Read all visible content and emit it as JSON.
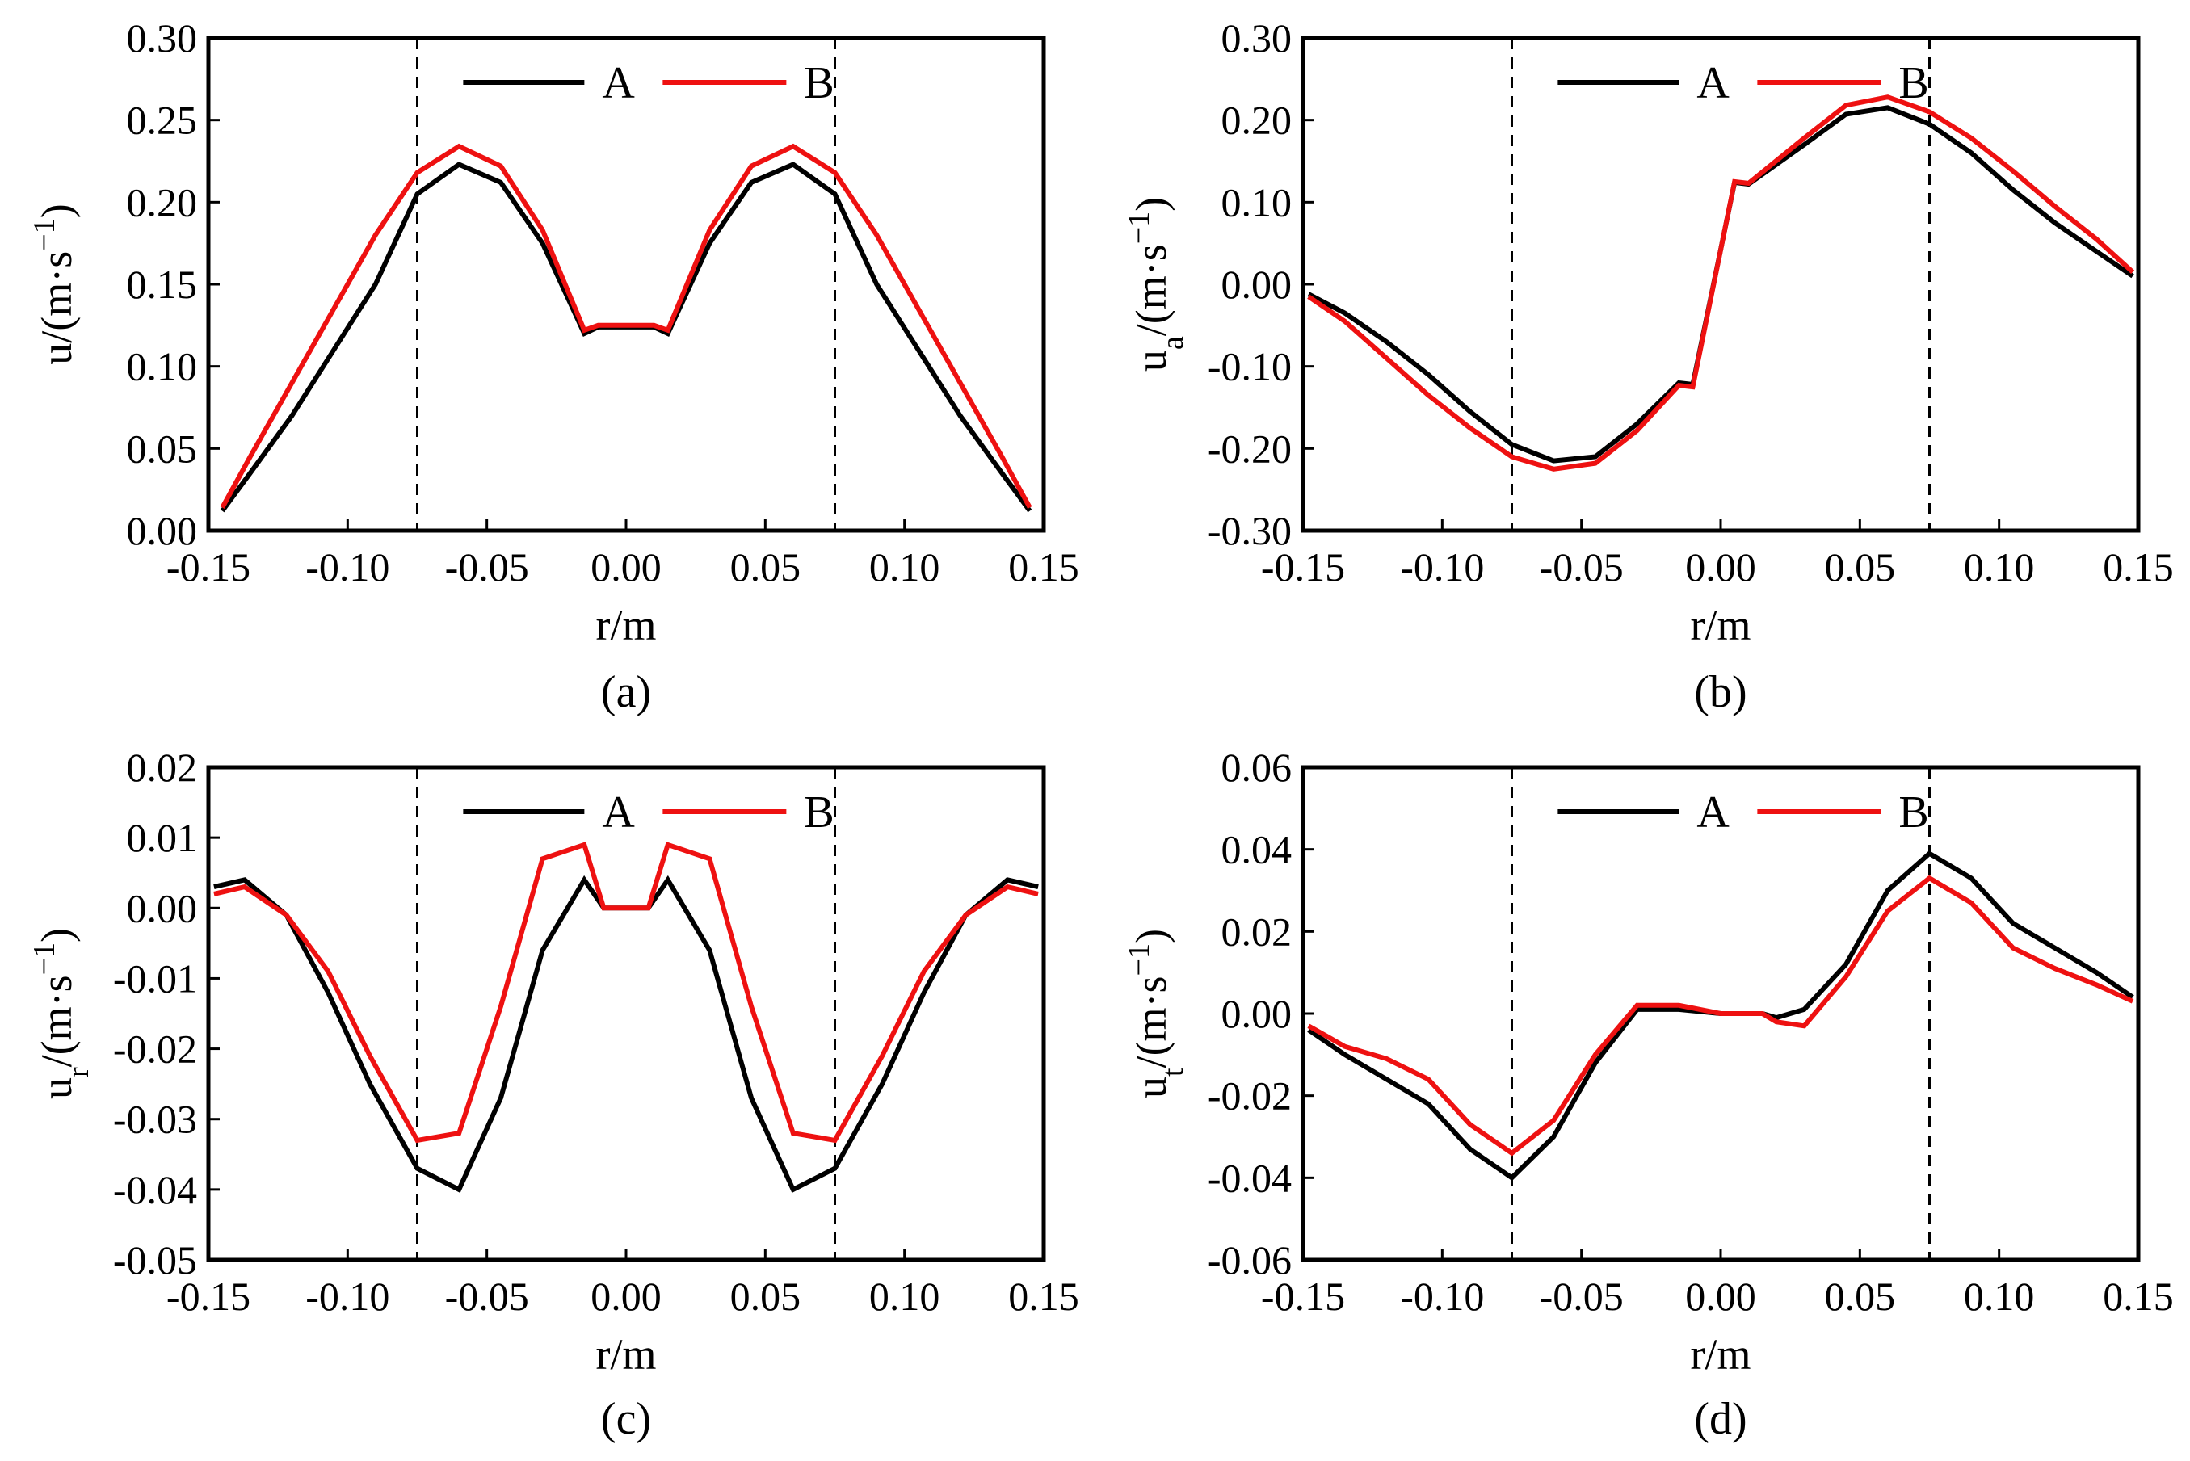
{
  "colors": {
    "series_A": "#000000",
    "series_B": "#ee1111",
    "axes": "#000000",
    "background": "#ffffff"
  },
  "chart_data": [
    {
      "type": "line",
      "caption": "(a)",
      "xlabel": "r/m",
      "ylabel_main": "u",
      "ylabel_sub": "",
      "ylabel_unit": "/(m·s",
      "ylabel_exp": "−1",
      "ylabel_close": ")",
      "xlim": [
        -0.15,
        0.15
      ],
      "ylim": [
        0.0,
        0.3
      ],
      "xticks": [
        -0.15,
        -0.1,
        -0.05,
        0.0,
        0.05,
        0.1,
        0.15
      ],
      "xtick_labels": [
        "-0.15",
        "-0.10",
        "-0.05",
        "0.00",
        "0.05",
        "0.10",
        "0.15"
      ],
      "yticks": [
        0.0,
        0.05,
        0.1,
        0.15,
        0.2,
        0.25,
        0.3
      ],
      "ytick_labels": [
        "0.00",
        "0.05",
        "0.10",
        "0.15",
        "0.20",
        "0.25",
        "0.30"
      ],
      "vlines": [
        -0.075,
        0.075
      ],
      "legend": [
        "A",
        "B"
      ],
      "x": [
        -0.145,
        -0.135,
        -0.12,
        -0.105,
        -0.09,
        -0.075,
        -0.06,
        -0.045,
        -0.03,
        -0.015,
        -0.01,
        0.0,
        0.01,
        0.015,
        0.03,
        0.045,
        0.06,
        0.075,
        0.09,
        0.105,
        0.12,
        0.135,
        0.145
      ],
      "series": [
        {
          "name": "A",
          "values": [
            0.012,
            0.035,
            0.07,
            0.11,
            0.15,
            0.205,
            0.223,
            0.212,
            0.175,
            0.12,
            0.124,
            0.124,
            0.124,
            0.12,
            0.175,
            0.212,
            0.223,
            0.205,
            0.15,
            0.11,
            0.07,
            0.035,
            0.012
          ]
        },
        {
          "name": "B",
          "values": [
            0.014,
            0.045,
            0.09,
            0.135,
            0.18,
            0.218,
            0.234,
            0.222,
            0.183,
            0.122,
            0.125,
            0.125,
            0.125,
            0.122,
            0.183,
            0.222,
            0.234,
            0.218,
            0.18,
            0.135,
            0.09,
            0.045,
            0.014
          ]
        }
      ]
    },
    {
      "type": "line",
      "caption": "(b)",
      "xlabel": "r/m",
      "ylabel_main": "u",
      "ylabel_sub": "a",
      "ylabel_unit": "/(m·s",
      "ylabel_exp": "−1",
      "ylabel_close": ")",
      "xlim": [
        -0.15,
        0.15
      ],
      "ylim": [
        -0.3,
        0.3
      ],
      "xticks": [
        -0.15,
        -0.1,
        -0.05,
        0.0,
        0.05,
        0.1,
        0.15
      ],
      "xtick_labels": [
        "-0.15",
        "-0.10",
        "-0.05",
        "0.00",
        "0.05",
        "0.10",
        "0.15"
      ],
      "yticks": [
        -0.3,
        -0.2,
        -0.1,
        0.0,
        0.1,
        0.2,
        0.3
      ],
      "ytick_labels": [
        "-0.30",
        "-0.20",
        "-0.10",
        "0.00",
        "0.10",
        "0.20",
        "0.30"
      ],
      "vlines": [
        -0.075,
        0.075
      ],
      "legend": [
        "A",
        "B"
      ],
      "x": [
        -0.148,
        -0.135,
        -0.12,
        -0.105,
        -0.09,
        -0.075,
        -0.06,
        -0.045,
        -0.03,
        -0.015,
        -0.01,
        0.005,
        0.01,
        0.03,
        0.045,
        0.06,
        0.075,
        0.09,
        0.105,
        0.12,
        0.135,
        0.148
      ],
      "series": [
        {
          "name": "A",
          "values": [
            -0.012,
            -0.035,
            -0.07,
            -0.11,
            -0.155,
            -0.195,
            -0.215,
            -0.21,
            -0.17,
            -0.12,
            -0.122,
            0.124,
            0.122,
            0.17,
            0.207,
            0.215,
            0.195,
            0.16,
            0.115,
            0.075,
            0.04,
            0.01
          ]
        },
        {
          "name": "B",
          "values": [
            -0.015,
            -0.045,
            -0.09,
            -0.135,
            -0.175,
            -0.21,
            -0.225,
            -0.218,
            -0.178,
            -0.123,
            -0.125,
            0.125,
            0.123,
            0.178,
            0.218,
            0.228,
            0.21,
            0.178,
            0.138,
            0.095,
            0.055,
            0.015
          ]
        }
      ]
    },
    {
      "type": "line",
      "caption": "(c)",
      "xlabel": "r/m",
      "ylabel_main": "u",
      "ylabel_sub": "r",
      "ylabel_unit": "/(m·s",
      "ylabel_exp": "−1",
      "ylabel_close": ")",
      "xlim": [
        -0.15,
        0.15
      ],
      "ylim": [
        -0.05,
        0.02
      ],
      "xticks": [
        -0.15,
        -0.1,
        -0.05,
        0.0,
        0.05,
        0.1,
        0.15
      ],
      "xtick_labels": [
        "-0.15",
        "-0.10",
        "-0.05",
        "0.00",
        "0.05",
        "0.10",
        "0.15"
      ],
      "yticks": [
        -0.05,
        -0.04,
        -0.03,
        -0.02,
        -0.01,
        0.0,
        0.01,
        0.02
      ],
      "ytick_labels": [
        "-0.05",
        "-0.04",
        "-0.03",
        "-0.02",
        "-0.01",
        "0.00",
        "0.01",
        "0.02"
      ],
      "vlines": [
        -0.075,
        0.075
      ],
      "legend": [
        "A",
        "B"
      ],
      "x": [
        -0.148,
        -0.137,
        -0.122,
        -0.107,
        -0.092,
        -0.075,
        -0.06,
        -0.045,
        -0.03,
        -0.015,
        -0.008,
        0.0,
        0.008,
        0.015,
        0.03,
        0.045,
        0.06,
        0.075,
        0.092,
        0.107,
        0.122,
        0.137,
        0.148
      ],
      "series": [
        {
          "name": "A",
          "values": [
            0.003,
            0.004,
            -0.001,
            -0.012,
            -0.025,
            -0.037,
            -0.04,
            -0.027,
            -0.006,
            0.004,
            0.0,
            0.0,
            0.0,
            0.004,
            -0.006,
            -0.027,
            -0.04,
            -0.037,
            -0.025,
            -0.012,
            -0.001,
            0.004,
            0.003
          ]
        },
        {
          "name": "B",
          "values": [
            0.002,
            0.003,
            -0.001,
            -0.009,
            -0.021,
            -0.033,
            -0.032,
            -0.014,
            0.007,
            0.009,
            0.0,
            0.0,
            0.0,
            0.009,
            0.007,
            -0.014,
            -0.032,
            -0.033,
            -0.021,
            -0.009,
            -0.001,
            0.003,
            0.002
          ]
        }
      ]
    },
    {
      "type": "line",
      "caption": "(d)",
      "xlabel": "r/m",
      "ylabel_main": "u",
      "ylabel_sub": "t",
      "ylabel_unit": "/(m·s",
      "ylabel_exp": "−1",
      "ylabel_close": ")",
      "xlim": [
        -0.15,
        0.15
      ],
      "ylim": [
        -0.06,
        0.06
      ],
      "xticks": [
        -0.15,
        -0.1,
        -0.05,
        0.0,
        0.05,
        0.1,
        0.15
      ],
      "xtick_labels": [
        "-0.15",
        "-0.10",
        "-0.05",
        "0.00",
        "0.05",
        "0.10",
        "0.15"
      ],
      "yticks": [
        -0.06,
        -0.04,
        -0.02,
        0.0,
        0.02,
        0.04,
        0.06
      ],
      "ytick_labels": [
        "-0.06",
        "-0.04",
        "-0.02",
        "0.00",
        "0.02",
        "0.04",
        "0.06"
      ],
      "vlines": [
        -0.075,
        0.075
      ],
      "legend": [
        "A",
        "B"
      ],
      "x": [
        -0.148,
        -0.135,
        -0.12,
        -0.105,
        -0.09,
        -0.075,
        -0.06,
        -0.045,
        -0.03,
        -0.02,
        -0.015,
        0.0,
        0.015,
        0.02,
        0.03,
        0.045,
        0.06,
        0.075,
        0.09,
        0.105,
        0.12,
        0.135,
        0.148
      ],
      "series": [
        {
          "name": "A",
          "values": [
            -0.004,
            -0.01,
            -0.016,
            -0.022,
            -0.033,
            -0.04,
            -0.03,
            -0.012,
            0.001,
            0.001,
            0.001,
            0.0,
            0.0,
            -0.001,
            0.001,
            0.012,
            0.03,
            0.039,
            0.033,
            0.022,
            0.016,
            0.01,
            0.004
          ]
        },
        {
          "name": "B",
          "values": [
            -0.003,
            -0.008,
            -0.011,
            -0.016,
            -0.027,
            -0.034,
            -0.026,
            -0.01,
            0.002,
            0.002,
            0.002,
            0.0,
            0.0,
            -0.002,
            -0.003,
            0.009,
            0.025,
            0.033,
            0.027,
            0.016,
            0.011,
            0.007,
            0.003
          ]
        }
      ]
    }
  ]
}
